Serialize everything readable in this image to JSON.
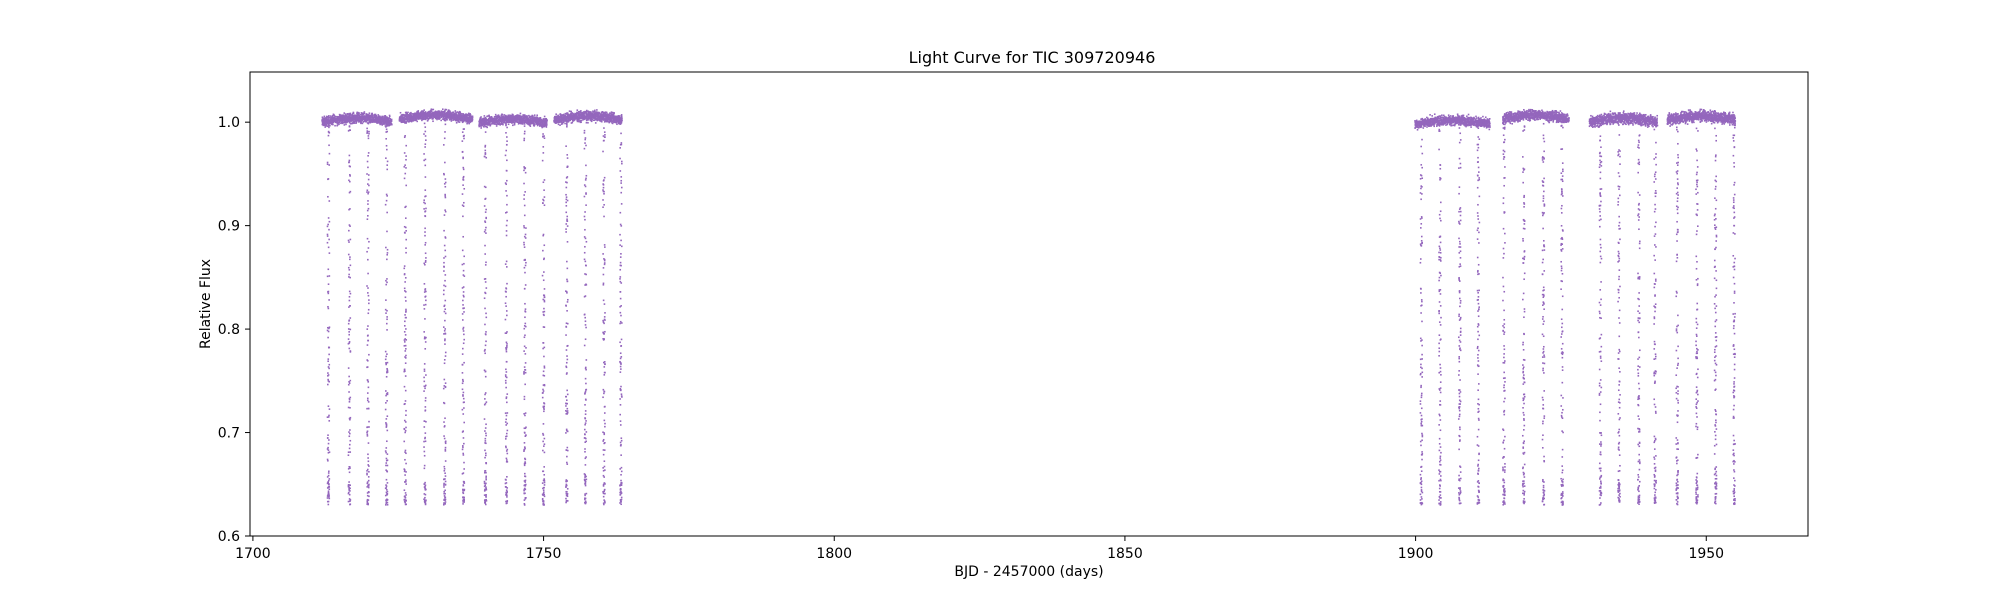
{
  "chart_data": {
    "type": "scatter",
    "title": "Light Curve for TIC 309720946",
    "xlabel": "BJD - 2457000 (days)",
    "ylabel": "Relative Flux",
    "xlim": [
      1699.5,
      1967.5
    ],
    "ylim": [
      0.6,
      1.0485
    ],
    "xticks": [
      1700,
      1750,
      1800,
      1850,
      1900,
      1950
    ],
    "yticks": [
      0.6,
      0.7,
      0.8,
      0.9,
      1.0
    ],
    "xtick_labels": [
      "1700",
      "1750",
      "1800",
      "1850",
      "1900",
      "1950"
    ],
    "ytick_labels": [
      "0.6",
      "0.7",
      "0.8",
      "0.9",
      "1.0"
    ],
    "grid": false,
    "legend": false,
    "marker_color": "#9467bd",
    "series": [
      {
        "segments": [
          {
            "start": 1711.9,
            "end": 1723.9,
            "base_flux": 1.0,
            "spread": 0.007
          },
          {
            "start": 1725.2,
            "end": 1737.8,
            "base_flux": 1.003,
            "spread": 0.007
          },
          {
            "start": 1738.9,
            "end": 1750.6,
            "base_flux": 0.999,
            "spread": 0.007
          },
          {
            "start": 1751.8,
            "end": 1763.5,
            "base_flux": 1.002,
            "spread": 0.007
          },
          {
            "start": 1899.9,
            "end": 1912.8,
            "base_flux": 0.998,
            "spread": 0.007
          },
          {
            "start": 1915.0,
            "end": 1926.4,
            "base_flux": 1.003,
            "spread": 0.007
          },
          {
            "start": 1929.9,
            "end": 1941.6,
            "base_flux": 1.0,
            "spread": 0.008
          },
          {
            "start": 1943.3,
            "end": 1955.0,
            "base_flux": 1.002,
            "spread": 0.008
          }
        ],
        "eclipse_times": [
          1713.0,
          1716.6,
          1719.8,
          1723.0,
          1726.2,
          1729.6,
          1733.0,
          1736.2,
          1740.0,
          1743.6,
          1746.8,
          1750.0,
          1754.0,
          1757.2,
          1760.4,
          1763.3,
          1901.0,
          1904.2,
          1907.6,
          1910.8,
          1915.2,
          1918.6,
          1922.0,
          1925.2,
          1931.8,
          1935.0,
          1938.4,
          1941.2,
          1945.0,
          1948.4,
          1951.6,
          1954.8
        ],
        "eclipse_depth_min_flux": 0.63
      }
    ]
  }
}
